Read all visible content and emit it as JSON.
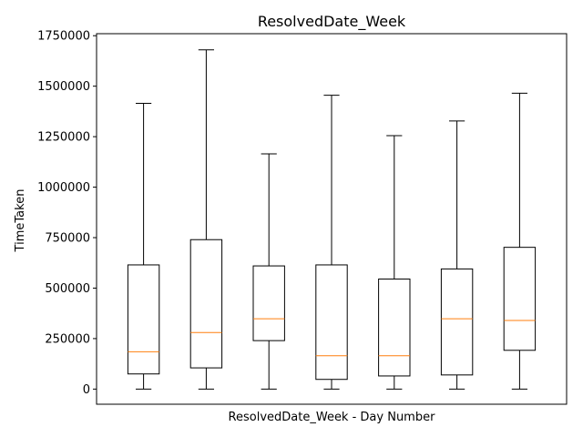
{
  "chart_data": {
    "type": "boxplot",
    "title": "ResolvedDate_Week",
    "xlabel": "ResolvedDate_Week - Day Number",
    "ylabel": "TimeTaken",
    "ylim": [
      -75000,
      1760000
    ],
    "yticks": [
      0,
      250000,
      500000,
      750000,
      1000000,
      1250000,
      1500000,
      1750000
    ],
    "ytick_labels": [
      "0",
      "250000",
      "500000",
      "750000",
      "1000000",
      "1250000",
      "1500000",
      "1750000"
    ],
    "grid": false,
    "box_color": "#000000",
    "median_color": "#ff7f0e",
    "boxes": [
      {
        "whisker_low": 0,
        "q1": 75000,
        "median": 185000,
        "q3": 615000,
        "whisker_high": 1415000
      },
      {
        "whisker_low": 0,
        "q1": 105000,
        "median": 280000,
        "q3": 740000,
        "whisker_high": 1680000
      },
      {
        "whisker_low": 0,
        "q1": 240000,
        "median": 348000,
        "q3": 610000,
        "whisker_high": 1165000
      },
      {
        "whisker_low": 0,
        "q1": 48000,
        "median": 165000,
        "q3": 615000,
        "whisker_high": 1455000
      },
      {
        "whisker_low": 0,
        "q1": 65000,
        "median": 165000,
        "q3": 545000,
        "whisker_high": 1255000
      },
      {
        "whisker_low": 0,
        "q1": 70000,
        "median": 348000,
        "q3": 595000,
        "whisker_high": 1328000
      },
      {
        "whisker_low": 0,
        "q1": 192000,
        "median": 340000,
        "q3": 702000,
        "whisker_high": 1465000
      }
    ]
  }
}
